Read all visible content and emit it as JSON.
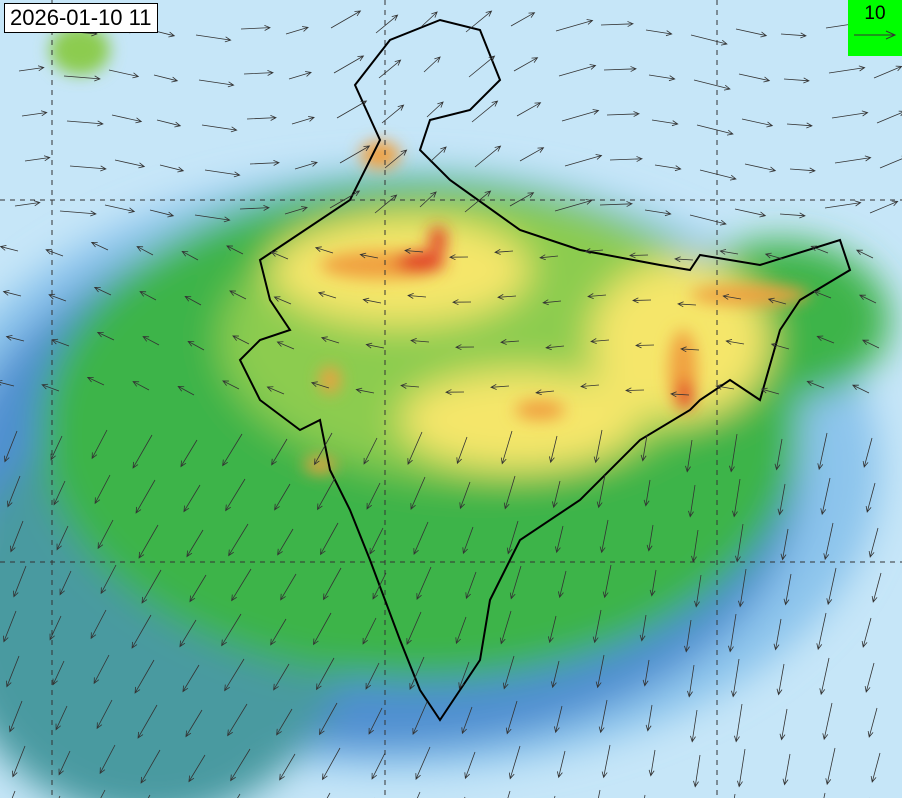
{
  "timestamp": "2026-01-10 11",
  "wind_legend": {
    "value": "10",
    "icon": "arrow-right-icon"
  },
  "colors": {
    "background": "#c6e6f8",
    "low": "#8cc4ec",
    "medium_low": "#4f8fd0",
    "teal": "#4a9aa0",
    "green": "#3cb44a",
    "light_green": "#8ccc50",
    "yellow": "#f5e66a",
    "orange": "#f0a040",
    "red": "#e03020",
    "legend_bg": "#00ff00"
  }
}
